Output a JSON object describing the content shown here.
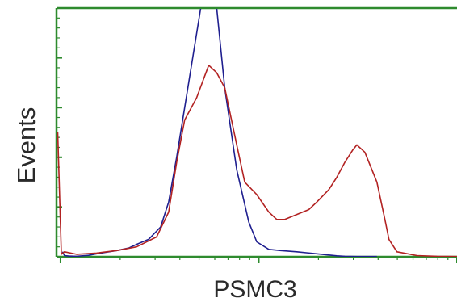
{
  "chart_data": {
    "type": "line",
    "title": "",
    "xlabel": "PSMC3",
    "ylabel": "Events",
    "x_scale": "log",
    "xlim": [
      0,
      100
    ],
    "ylim": [
      0,
      100
    ],
    "x_decade_ticks": [
      1,
      50.5,
      100
    ],
    "grid": false,
    "legend": "none",
    "frame_color": "#2e8b2e",
    "series": [
      {
        "color": "#1f1f8f",
        "x": [
          1.5,
          2,
          3,
          5,
          8,
          10,
          15,
          18,
          20,
          23,
          26,
          28,
          30,
          33,
          36,
          37,
          38,
          40,
          42,
          45,
          48,
          50,
          53,
          56,
          60,
          65,
          70,
          72,
          75,
          80
        ],
        "y": [
          2,
          0.5,
          0.3,
          0.2,
          0.6,
          1.2,
          2.5,
          3.5,
          5,
          7,
          12,
          22,
          40,
          70,
          100,
          105,
          105,
          100,
          68,
          35,
          14,
          6,
          3,
          2.5,
          2,
          1.2,
          0.4,
          0.2,
          0.1,
          0.1
        ]
      },
      {
        "color": "#b22222",
        "x": [
          0.3,
          1.2,
          2,
          5,
          10,
          15,
          20,
          25,
          28,
          30,
          32,
          35,
          38,
          40,
          42,
          45,
          47,
          50,
          53,
          55,
          57,
          60,
          63,
          65,
          68,
          70,
          72,
          74,
          75,
          77,
          80,
          82,
          83,
          85,
          90,
          95,
          100
        ],
        "y": [
          50,
          1,
          2,
          1,
          1.5,
          2.5,
          4,
          8,
          18,
          38,
          55,
          64,
          77,
          74,
          68,
          45,
          30,
          25,
          18,
          15,
          15,
          17,
          19,
          22,
          27,
          32,
          38,
          43,
          45,
          42,
          30,
          15,
          7,
          2,
          0.5,
          0.2,
          0.1
        ]
      }
    ]
  }
}
